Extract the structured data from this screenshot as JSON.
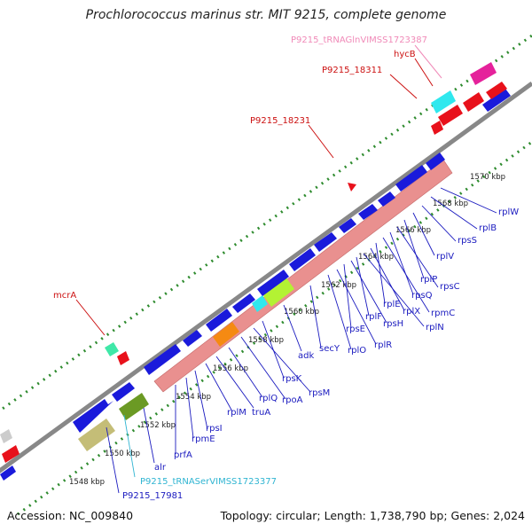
{
  "title": "Prochlorococcus marinus str. MIT 9215, complete genome",
  "footer": {
    "accession": "Accession: NC_009840",
    "summary": "Topology: circular; Length: 1,738,790 bp; Genes: 2,024"
  },
  "colors": {
    "backbone": "#888888",
    "dotted": "#2e8b2e",
    "gene_blue": "#1a1adb",
    "gene_red": "#e8111b",
    "gene_pink": "#e9908f",
    "gene_cyan": "#2fe8ee",
    "gene_magenta": "#e5229b",
    "gene_lime": "#b3f233",
    "gene_orange": "#f58a12",
    "gene_olive": "#c4bd77",
    "gene_darkolive": "#6b9a24",
    "label_red": "#cc1111",
    "label_blue": "#1a1abf",
    "label_cyan": "#30b5d2",
    "label_pink": "#f08ab8"
  },
  "scale_labels": [
    "1548 kbp",
    "1550 kbp",
    "1552 kbp",
    "1554 kbp",
    "1556 kbp",
    "1558 kbp",
    "1560 kbp",
    "1562 kbp",
    "1564 kbp",
    "1566 kbp",
    "1568 kbp",
    "1570 kbp"
  ],
  "gene_labels_top": [
    {
      "name": "P9215_tRNAGlnVIMSS1723387",
      "color": "pink"
    },
    {
      "name": "hycB",
      "color": "red"
    },
    {
      "name": "P9215_18311",
      "color": "red"
    },
    {
      "name": "P9215_18231",
      "color": "red"
    },
    {
      "name": "mcrA",
      "color": "red"
    }
  ],
  "gene_labels_bottom": [
    {
      "name": "rplW"
    },
    {
      "name": "rplB"
    },
    {
      "name": "rpsS"
    },
    {
      "name": "rplV"
    },
    {
      "name": "rplP"
    },
    {
      "name": "rpsC"
    },
    {
      "name": "rpsQ"
    },
    {
      "name": "rpmC"
    },
    {
      "name": "rplE"
    },
    {
      "name": "rplX"
    },
    {
      "name": "rplN"
    },
    {
      "name": "rplF"
    },
    {
      "name": "rpsH"
    },
    {
      "name": "rpsE"
    },
    {
      "name": "rplR"
    },
    {
      "name": "rplO"
    },
    {
      "name": "secY"
    },
    {
      "name": "adk"
    },
    {
      "name": "rpsK"
    },
    {
      "name": "rpsM"
    },
    {
      "name": "rpoA"
    },
    {
      "name": "rplQ"
    },
    {
      "name": "truA"
    },
    {
      "name": "rplM"
    },
    {
      "name": "rpsI"
    },
    {
      "name": "rpmE"
    },
    {
      "name": "prfA"
    },
    {
      "name": "alr"
    },
    {
      "name": "P9215_tRNASerVIMSS1723377"
    },
    {
      "name": "P9215_17981"
    }
  ]
}
